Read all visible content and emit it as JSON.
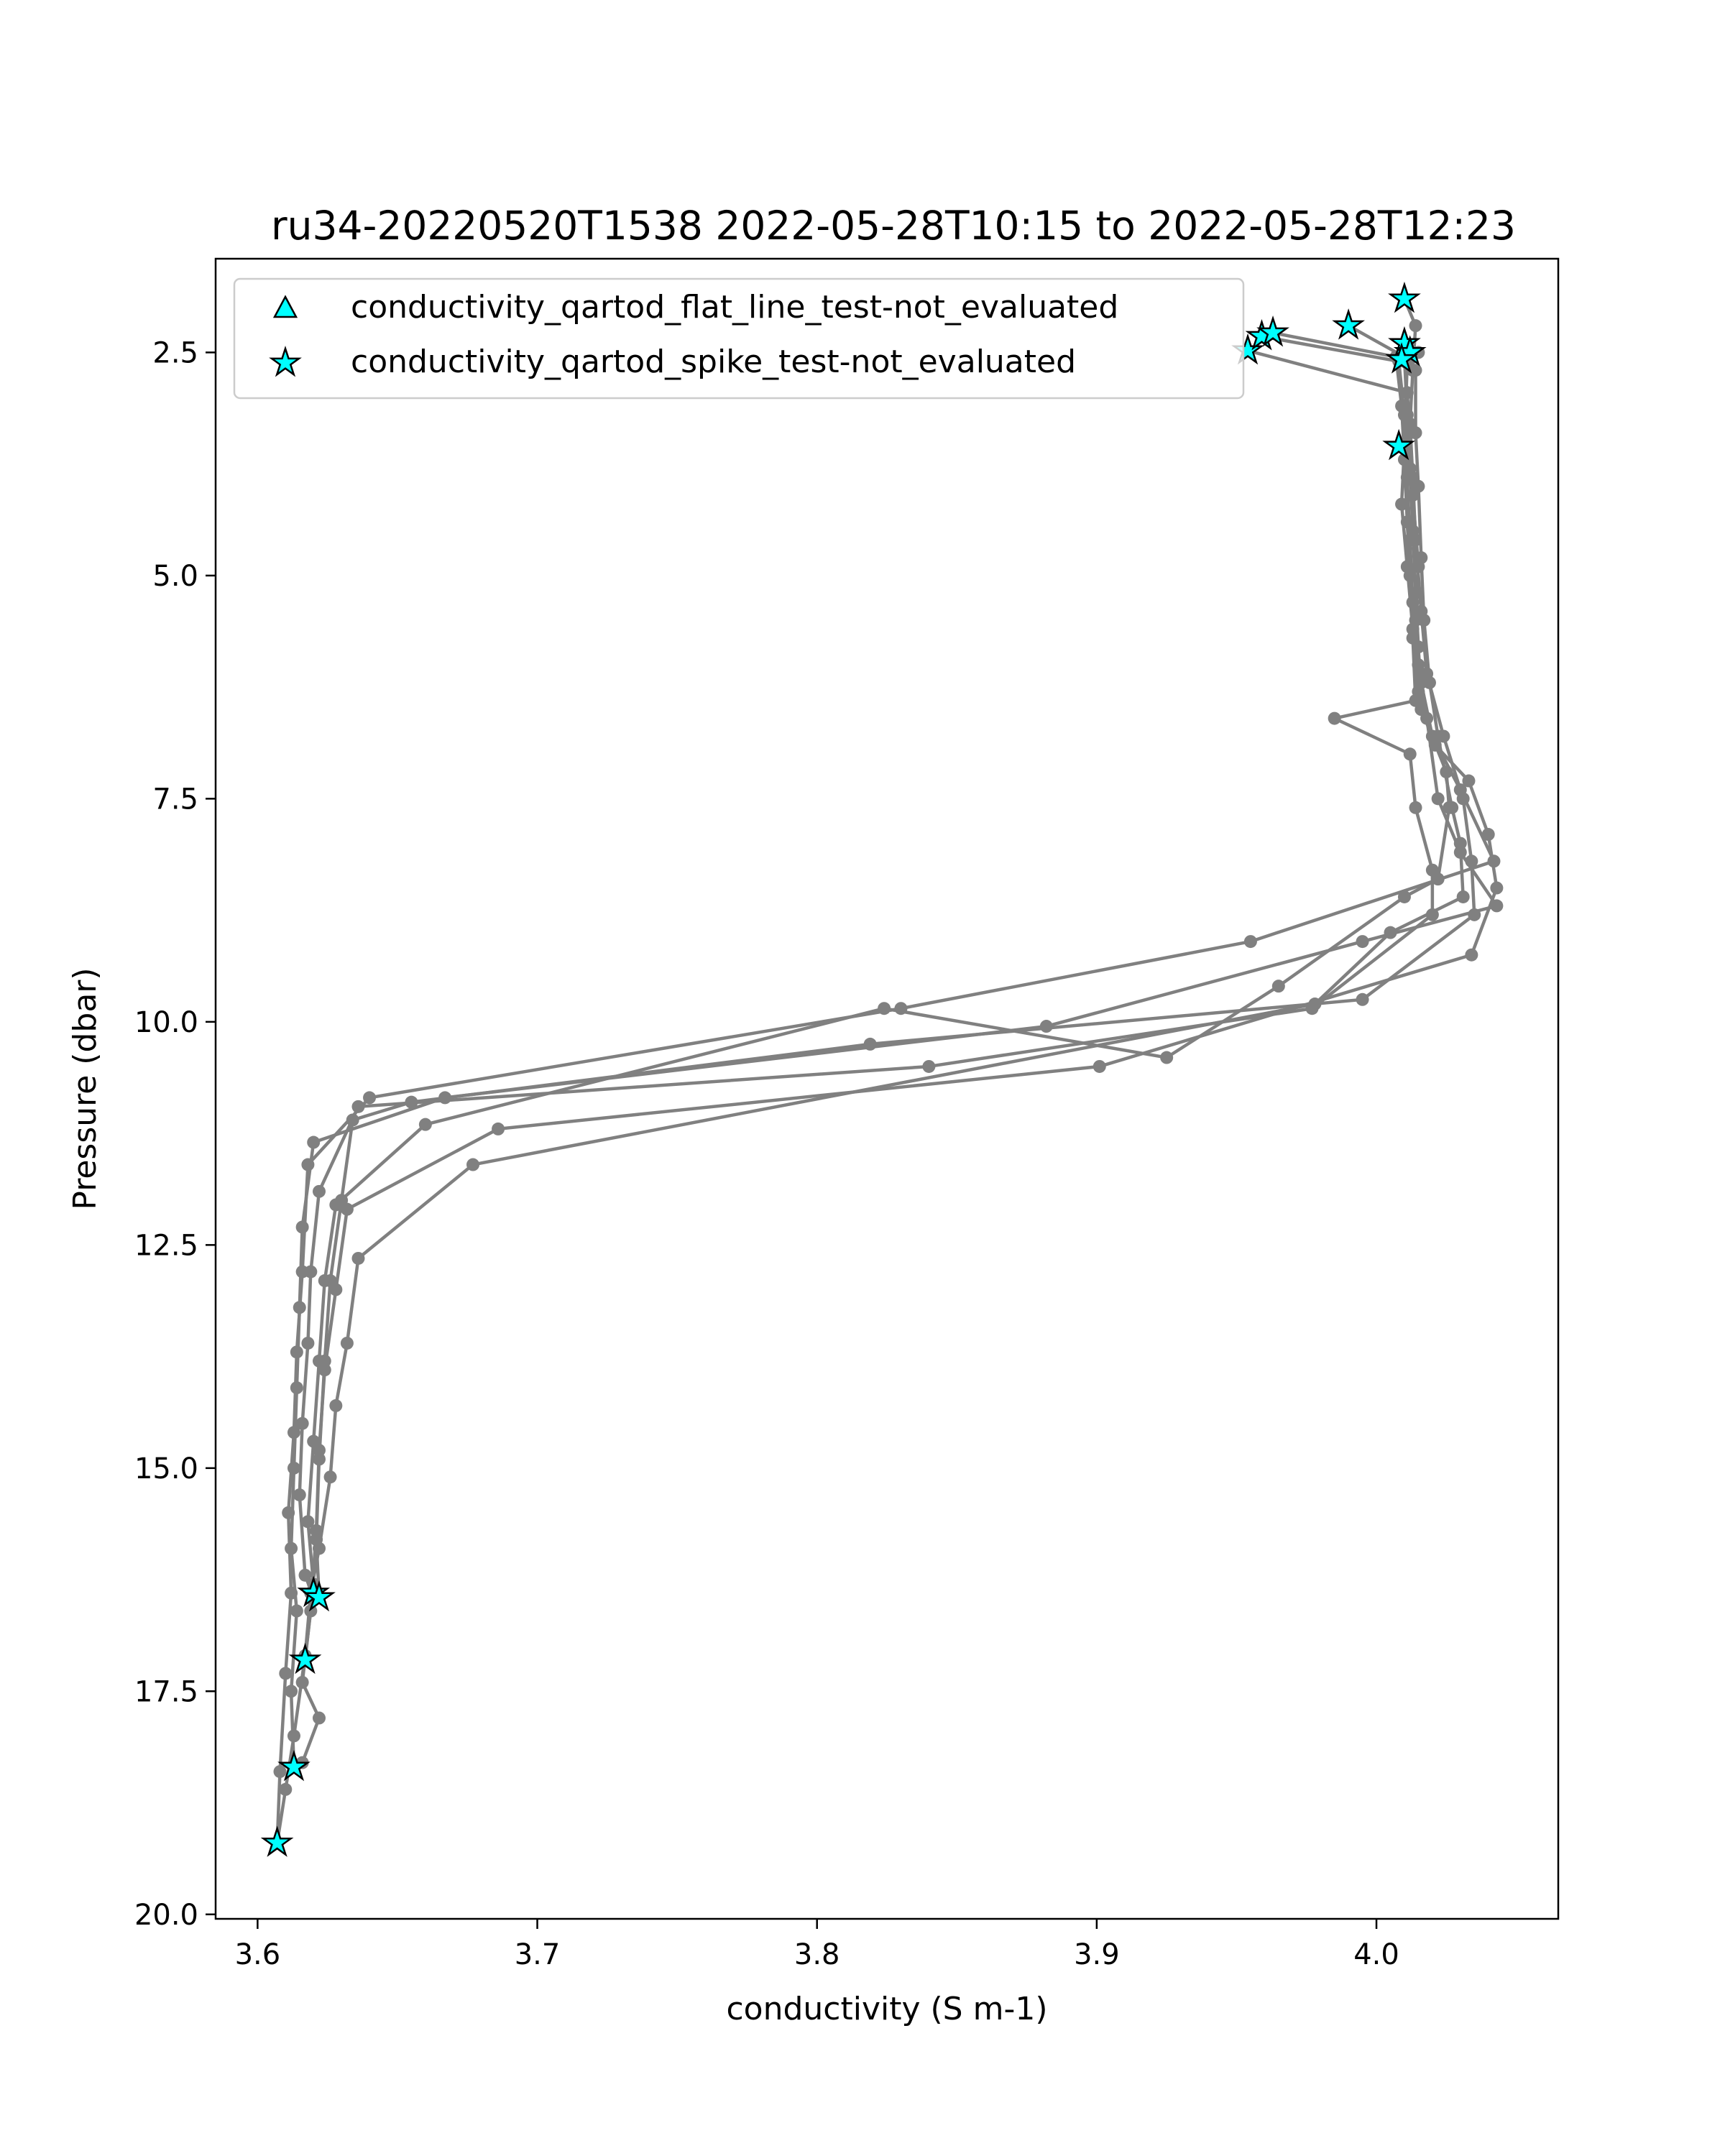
{
  "chart_data": {
    "type": "line",
    "title": "ru34-20220520T1538 2022-05-28T10:15 to 2022-05-28T12:23",
    "xlabel": "conductivity (S m-1)",
    "ylabel": "Pressure (dbar)",
    "xlim": [
      3.585,
      4.065
    ],
    "ylim": [
      20.05,
      1.45
    ],
    "y_inverted": true,
    "x_ticks": [
      3.6,
      3.7,
      3.8,
      3.9,
      4.0
    ],
    "x_tick_labels": [
      "3.6",
      "3.7",
      "3.8",
      "3.9",
      "4.0"
    ],
    "y_ticks": [
      2.5,
      5.0,
      7.5,
      10.0,
      12.5,
      15.0,
      17.5,
      20.0
    ],
    "y_tick_labels": [
      "2.5",
      "5.0",
      "7.5",
      "10.0",
      "12.5",
      "15.0",
      "17.5",
      "20.0"
    ],
    "grid": false,
    "legend": {
      "placement": "top-left",
      "entries": [
        {
          "label": "conductivity_qartod_flat_line_test-not_evaluated",
          "marker": "triangle",
          "color": "#00ffff"
        },
        {
          "label": "conductivity_qartod_spike_test-not_evaluated",
          "marker": "star",
          "color": "#00ffff"
        }
      ]
    },
    "line_color": "#808080",
    "marker_edge_color": "#000000",
    "series": [
      {
        "points": [
          [
            3.954,
            2.48
          ],
          [
            4.011,
            2.95
          ],
          [
            4.012,
            3.4
          ],
          [
            4.013,
            4.1
          ],
          [
            4.015,
            4.9
          ],
          [
            4.014,
            5.5
          ],
          [
            4.016,
            6.2
          ],
          [
            4.02,
            6.8
          ],
          [
            4.03,
            7.4
          ],
          [
            4.042,
            8.2
          ],
          [
            3.955,
            9.1
          ],
          [
            3.83,
            9.85
          ],
          [
            3.64,
            10.85
          ],
          [
            3.618,
            11.6
          ],
          [
            3.616,
            12.8
          ],
          [
            3.614,
            13.7
          ],
          [
            3.613,
            14.6
          ],
          [
            3.611,
            15.5
          ],
          [
            3.612,
            16.4
          ],
          [
            3.61,
            17.3
          ],
          [
            3.608,
            18.4
          ],
          [
            3.607,
            19.2
          ]
        ]
      },
      {
        "points": [
          [
            3.959,
            2.32
          ],
          [
            4.008,
            2.6
          ],
          [
            4.01,
            3.2
          ],
          [
            4.011,
            3.9
          ],
          [
            4.012,
            4.6
          ],
          [
            4.013,
            5.3
          ],
          [
            4.015,
            6.0
          ],
          [
            4.018,
            6.6
          ],
          [
            4.022,
            7.5
          ],
          [
            4.03,
            8.1
          ],
          [
            4.043,
            8.7
          ],
          [
            3.995,
            9.1
          ],
          [
            3.882,
            10.05
          ],
          [
            3.667,
            10.85
          ],
          [
            3.62,
            11.35
          ],
          [
            3.616,
            12.3
          ],
          [
            3.615,
            13.2
          ],
          [
            3.614,
            14.1
          ],
          [
            3.613,
            15.0
          ],
          [
            3.612,
            15.9
          ],
          [
            3.614,
            16.6
          ],
          [
            3.612,
            17.5
          ],
          [
            3.613,
            18.35
          ]
        ]
      },
      {
        "points": [
          [
            3.963,
            2.28
          ],
          [
            4.007,
            2.55
          ],
          [
            4.009,
            3.1
          ],
          [
            4.01,
            3.7
          ],
          [
            4.011,
            4.4
          ],
          [
            4.012,
            5.0
          ],
          [
            4.013,
            5.7
          ],
          [
            4.014,
            6.4
          ],
          [
            3.985,
            6.6
          ],
          [
            4.012,
            7.0
          ],
          [
            4.014,
            7.6
          ],
          [
            4.02,
            8.3
          ],
          [
            4.02,
            8.8
          ],
          [
            3.977,
            9.85
          ],
          [
            3.84,
            10.5
          ],
          [
            3.636,
            10.95
          ],
          [
            3.622,
            11.9
          ],
          [
            3.619,
            12.8
          ],
          [
            3.618,
            13.6
          ],
          [
            3.616,
            14.5
          ],
          [
            3.615,
            15.3
          ],
          [
            3.617,
            16.2
          ],
          [
            3.62,
            16.45
          ]
        ]
      },
      {
        "points": [
          [
            3.99,
            2.2
          ],
          [
            4.01,
            2.55
          ],
          [
            4.011,
            3.2
          ],
          [
            4.012,
            3.8
          ],
          [
            4.013,
            4.5
          ],
          [
            4.014,
            5.2
          ],
          [
            4.015,
            5.8
          ],
          [
            4.016,
            6.5
          ],
          [
            4.025,
            7.2
          ],
          [
            4.026,
            7.6
          ],
          [
            4.022,
            8.4
          ],
          [
            4.01,
            8.6
          ],
          [
            3.965,
            9.6
          ],
          [
            3.925,
            10.4
          ],
          [
            3.824,
            9.85
          ],
          [
            3.66,
            11.15
          ],
          [
            3.628,
            12.05
          ],
          [
            3.624,
            12.9
          ],
          [
            3.622,
            13.8
          ],
          [
            3.62,
            14.7
          ],
          [
            3.618,
            15.6
          ],
          [
            3.62,
            16.3
          ],
          [
            3.617,
            17.15
          ]
        ]
      },
      {
        "points": [
          [
            4.01,
            1.9
          ],
          [
            4.014,
            2.2
          ],
          [
            4.013,
            2.7
          ],
          [
            4.012,
            3.3
          ],
          [
            4.013,
            3.9
          ],
          [
            4.014,
            4.6
          ],
          [
            4.016,
            5.4
          ],
          [
            4.018,
            6.1
          ],
          [
            4.024,
            6.8
          ],
          [
            4.031,
            7.5
          ],
          [
            4.034,
            8.2
          ],
          [
            4.035,
            8.8
          ],
          [
            3.995,
            9.75
          ],
          [
            3.819,
            10.25
          ],
          [
            3.655,
            10.9
          ],
          [
            3.634,
            11.1
          ],
          [
            3.63,
            12.0
          ],
          [
            3.626,
            12.9
          ],
          [
            3.624,
            13.8
          ],
          [
            3.622,
            14.9
          ],
          [
            3.621,
            15.8
          ],
          [
            3.622,
            16.45
          ]
        ]
      },
      {
        "points": [
          [
            4.015,
            2.5
          ],
          [
            4.011,
            2.62
          ],
          [
            4.01,
            3.55
          ],
          [
            4.009,
            4.2
          ],
          [
            4.011,
            4.9
          ],
          [
            4.013,
            5.6
          ],
          [
            4.015,
            6.3
          ],
          [
            4.021,
            6.9
          ],
          [
            4.033,
            7.3
          ],
          [
            4.04,
            7.9
          ],
          [
            4.043,
            8.5
          ],
          [
            4.034,
            9.25
          ],
          [
            3.901,
            10.5
          ],
          [
            3.686,
            11.2
          ],
          [
            3.632,
            12.1
          ],
          [
            3.628,
            13.0
          ],
          [
            3.624,
            13.9
          ],
          [
            3.622,
            14.8
          ],
          [
            3.621,
            15.7
          ],
          [
            3.619,
            16.6
          ],
          [
            3.616,
            17.4
          ],
          [
            3.622,
            17.8
          ],
          [
            3.616,
            18.3
          ]
        ]
      },
      {
        "points": [
          [
            4.011,
            2.48
          ],
          [
            4.014,
            2.7
          ],
          [
            4.014,
            3.4
          ],
          [
            4.015,
            4.0
          ],
          [
            4.016,
            4.8
          ],
          [
            4.017,
            5.5
          ],
          [
            4.019,
            6.2
          ],
          [
            4.022,
            6.8
          ],
          [
            4.027,
            7.6
          ],
          [
            4.03,
            8.0
          ],
          [
            4.031,
            8.6
          ],
          [
            4.005,
            9.0
          ],
          [
            3.978,
            9.8
          ],
          [
            3.677,
            11.6
          ],
          [
            3.636,
            12.65
          ],
          [
            3.632,
            13.6
          ],
          [
            3.628,
            14.3
          ],
          [
            3.626,
            15.1
          ],
          [
            3.622,
            15.9
          ],
          [
            3.619,
            16.4
          ],
          [
            3.617,
            17.1
          ],
          [
            3.613,
            18.0
          ],
          [
            3.61,
            18.6
          ],
          [
            3.607,
            19.2
          ]
        ]
      }
    ],
    "flagged_points": [
      {
        "marker": "star",
        "points": [
          [
            3.954,
            2.48
          ],
          [
            3.959,
            2.32
          ],
          [
            3.963,
            2.28
          ],
          [
            3.99,
            2.2
          ],
          [
            4.01,
            1.9
          ],
          [
            4.01,
            2.4
          ],
          [
            4.012,
            2.5
          ],
          [
            4.009,
            2.58
          ],
          [
            4.008,
            3.55
          ],
          [
            3.62,
            16.4
          ],
          [
            3.622,
            16.45
          ],
          [
            3.617,
            17.15
          ],
          [
            3.613,
            18.35
          ],
          [
            3.607,
            19.2
          ]
        ]
      }
    ]
  }
}
